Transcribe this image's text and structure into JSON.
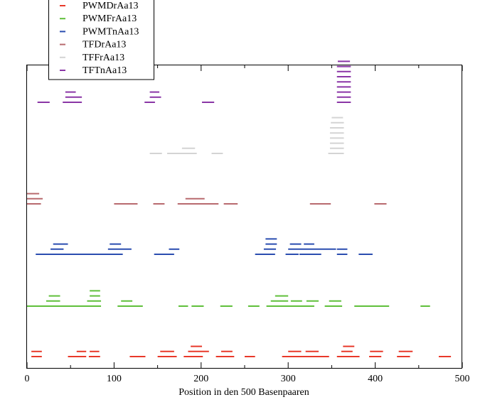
{
  "chart_data": {
    "type": "segment",
    "xlabel": "Position in den 500 Basenpaaren",
    "xlim": [
      0,
      500
    ],
    "xticks": [
      0,
      100,
      200,
      300,
      400,
      500
    ],
    "legend_position": "top-left",
    "series": [
      {
        "name": "PWMDrAa13",
        "color": "#e8392a",
        "segments": [
          [
            5,
            17,
            2
          ],
          [
            5,
            17,
            1
          ],
          [
            57,
            68,
            2
          ],
          [
            72,
            83,
            2
          ],
          [
            47,
            68,
            1
          ],
          [
            71,
            84,
            1
          ],
          [
            118,
            136,
            1
          ],
          [
            153,
            169,
            2
          ],
          [
            150,
            172,
            1
          ],
          [
            188,
            201,
            3
          ],
          [
            185,
            209,
            2
          ],
          [
            180,
            202,
            1
          ],
          [
            223,
            236,
            2
          ],
          [
            217,
            238,
            1
          ],
          [
            250,
            262,
            1
          ],
          [
            300,
            315,
            2
          ],
          [
            320,
            335,
            2
          ],
          [
            293,
            347,
            1
          ],
          [
            319,
            345,
            1
          ],
          [
            363,
            376,
            3
          ],
          [
            361,
            374,
            2
          ],
          [
            356,
            380,
            1
          ],
          [
            373,
            382,
            1
          ],
          [
            394,
            409,
            2
          ],
          [
            393,
            407,
            1
          ],
          [
            427,
            443,
            2
          ],
          [
            425,
            440,
            1
          ],
          [
            473,
            487,
            1
          ]
        ]
      },
      {
        "name": "PWMFrAa13",
        "color": "#5fbf3a",
        "segments": [
          [
            25,
            38,
            3
          ],
          [
            22,
            38,
            2
          ],
          [
            0,
            60,
            1
          ],
          [
            72,
            84,
            4
          ],
          [
            72,
            84,
            3
          ],
          [
            69,
            85,
            2
          ],
          [
            38,
            85,
            1
          ],
          [
            108,
            121,
            2
          ],
          [
            104,
            133,
            1
          ],
          [
            174,
            185,
            1
          ],
          [
            189,
            203,
            1
          ],
          [
            222,
            236,
            1
          ],
          [
            254,
            267,
            1
          ],
          [
            285,
            300,
            3
          ],
          [
            280,
            300,
            2
          ],
          [
            303,
            316,
            2
          ],
          [
            321,
            335,
            2
          ],
          [
            347,
            361,
            2
          ],
          [
            275,
            330,
            1
          ],
          [
            342,
            362,
            1
          ],
          [
            376,
            416,
            1
          ],
          [
            452,
            463,
            1
          ]
        ]
      },
      {
        "name": "PWMTnAa13",
        "color": "#2a4db0",
        "segments": [
          [
            30,
            47,
            3
          ],
          [
            27,
            42,
            2
          ],
          [
            10,
            100,
            1
          ],
          [
            95,
            108,
            3
          ],
          [
            93,
            120,
            2
          ],
          [
            90,
            110,
            1
          ],
          [
            163,
            175,
            2
          ],
          [
            146,
            169,
            1
          ],
          [
            274,
            287,
            4
          ],
          [
            274,
            287,
            3
          ],
          [
            272,
            286,
            2
          ],
          [
            262,
            285,
            1
          ],
          [
            302,
            315,
            3
          ],
          [
            318,
            330,
            3
          ],
          [
            300,
            355,
            2
          ],
          [
            297,
            312,
            1
          ],
          [
            313,
            338,
            1
          ],
          [
            356,
            368,
            2
          ],
          [
            356,
            368,
            1
          ],
          [
            381,
            397,
            1
          ]
        ]
      },
      {
        "name": "TFDrAa13",
        "color": "#b86a6e",
        "segments": [
          [
            0,
            14,
            3
          ],
          [
            0,
            18,
            2
          ],
          [
            0,
            16,
            1
          ],
          [
            182,
            204,
            2
          ],
          [
            100,
            127,
            1
          ],
          [
            145,
            158,
            1
          ],
          [
            173,
            220,
            1
          ],
          [
            226,
            242,
            1
          ],
          [
            325,
            349,
            1
          ],
          [
            399,
            413,
            1
          ]
        ]
      },
      {
        "name": "TFFrAa13",
        "color": "#d4d4d4",
        "segments": [
          [
            350,
            363,
            8
          ],
          [
            349,
            364,
            7
          ],
          [
            348,
            364,
            6
          ],
          [
            348,
            364,
            5
          ],
          [
            348,
            364,
            4
          ],
          [
            348,
            364,
            3
          ],
          [
            178,
            193,
            2
          ],
          [
            348,
            364,
            2
          ],
          [
            141,
            155,
            1
          ],
          [
            161,
            195,
            1
          ],
          [
            212,
            225,
            1
          ],
          [
            346,
            364,
            1
          ]
        ]
      },
      {
        "name": "TFTnAa13",
        "color": "#8a35a6",
        "segments": [
          [
            357,
            371,
            9
          ],
          [
            356,
            372,
            8
          ],
          [
            356,
            372,
            7
          ],
          [
            356,
            372,
            6
          ],
          [
            356,
            372,
            5
          ],
          [
            356,
            372,
            4
          ],
          [
            356,
            372,
            3
          ],
          [
            44,
            56,
            3
          ],
          [
            141,
            152,
            3
          ],
          [
            44,
            63,
            2
          ],
          [
            141,
            154,
            2
          ],
          [
            356,
            372,
            2
          ],
          [
            12,
            26,
            1
          ],
          [
            41,
            63,
            1
          ],
          [
            135,
            147,
            1
          ],
          [
            201,
            215,
            1
          ],
          [
            356,
            372,
            1
          ]
        ]
      }
    ]
  }
}
